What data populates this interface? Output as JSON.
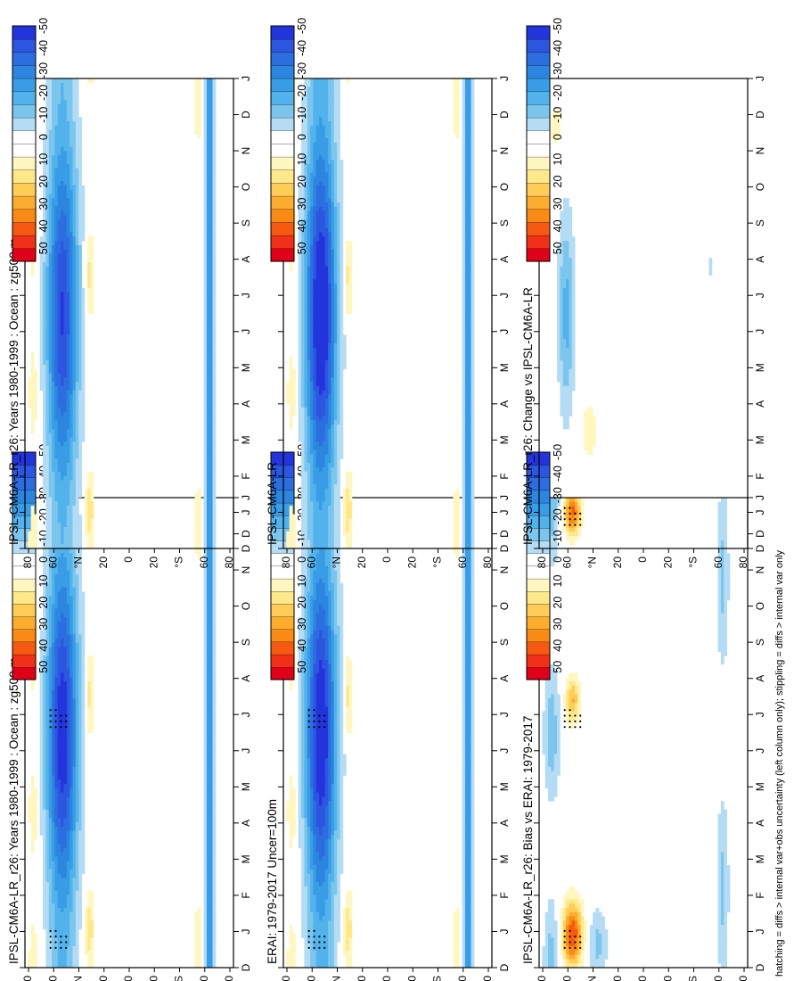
{
  "figure": {
    "footer": "hatching = diffs > internal var+obs uncertainty (left column only); stippling = diffs > internal var only"
  },
  "colorbar": {
    "labels": [
      "50",
      "40",
      "30",
      "20",
      "10",
      "0",
      "-10",
      "-20",
      "-30",
      "-40",
      "-50"
    ],
    "colors": [
      "#e0001a",
      "#f03018",
      "#f65a12",
      "#fa8a16",
      "#fcad30",
      "#fdcd58",
      "#fee88a",
      "#fff6c0",
      "#ffffff",
      "#ffffff",
      "#b4dcf4",
      "#7cc6ee",
      "#52b2ec",
      "#389ce6",
      "#2c86e0",
      "#2c6ee0",
      "#2c56e0",
      "#2434dc"
    ]
  },
  "axes": {
    "month_labels": [
      "D",
      "J",
      "F",
      "M",
      "A",
      "M",
      "J",
      "J",
      "A",
      "S",
      "O",
      "N",
      "D",
      "J"
    ],
    "lat_labels": [
      "80",
      "60",
      "°N",
      "20",
      "0",
      "20",
      "°S",
      "60",
      "80"
    ]
  },
  "chart_data": [
    {
      "type": "heatmap",
      "panel": "top-left",
      "title": "IPSL-CM6A-LR_r26: Years 1980-1999 : Ocean : zg500 m",
      "variable": "zg500",
      "units": "m",
      "x": "month",
      "y": "latitude",
      "peak_anomaly": -45,
      "stippled_months": [
        "J",
        "J",
        "A",
        "D",
        "J"
      ]
    },
    {
      "type": "heatmap",
      "panel": "top-right",
      "title": "IPSL-CM6A-LR_r26: Years 1980-1999 : Ocean : zg500 m",
      "variable": "zg500",
      "units": "m",
      "x": "month",
      "y": "latitude",
      "peak_anomaly": -40
    },
    {
      "type": "heatmap",
      "panel": "middle-left",
      "title": "ERAI: 1979-2017 Uncer=100m",
      "variable": "zg500",
      "units": "m",
      "x": "month",
      "y": "latitude",
      "peak_anomaly": -45,
      "stippled_months": [
        "J",
        "J",
        "A",
        "D",
        "J"
      ]
    },
    {
      "type": "heatmap",
      "panel": "middle-right",
      "title": "IPSL-CM6A-LR",
      "variable": "zg500",
      "units": "m",
      "x": "month",
      "y": "latitude",
      "peak_anomaly": -45
    },
    {
      "type": "heatmap",
      "panel": "bottom-left",
      "title": "IPSL-CM6A-LR_r26: Bias vs ERAI: 1979-2017",
      "variable": "zg500",
      "units": "m",
      "x": "month",
      "y": "latitude",
      "peak_anomaly": 40,
      "stippled_months": [
        "J",
        "J",
        "A",
        "D",
        "J"
      ]
    },
    {
      "type": "heatmap",
      "panel": "bottom-right",
      "title": "IPSL-CM6A-LR_r26: Change vs IPSL-CM6A-LR",
      "variable": "zg500",
      "units": "m",
      "x": "month",
      "y": "latitude",
      "peak_anomaly": -20
    }
  ]
}
